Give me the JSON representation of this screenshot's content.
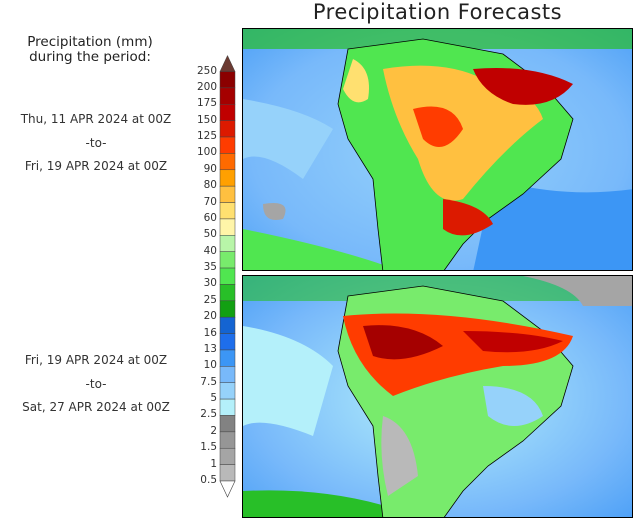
{
  "title": "Precipitation Forecasts",
  "legend": {
    "title_line1": "Precipitation (mm)",
    "title_line2": "during the period:",
    "labels": [
      "250",
      "200",
      "175",
      "150",
      "125",
      "100",
      "90",
      "80",
      "70",
      "60",
      "50",
      "40",
      "35",
      "30",
      "25",
      "20",
      "16",
      "13",
      "10",
      "7.5",
      "5",
      "2.5",
      "2",
      "1.5",
      "1",
      "0.5"
    ],
    "colors": [
      "#8b0000",
      "#a50000",
      "#c00000",
      "#dc1a00",
      "#ff3c00",
      "#ff6a00",
      "#ffa000",
      "#ffc040",
      "#ffe070",
      "#fff5a8",
      "#b8f5a8",
      "#78eb6c",
      "#50e650",
      "#28bf28",
      "#12a012",
      "#1464d2",
      "#1e6eeb",
      "#3c96f5",
      "#78b9fa",
      "#96d2fa",
      "#b4f0fa",
      "#828282",
      "#969696",
      "#a5a5a5",
      "#b9b9b9"
    ],
    "top_arrow_color": "#6b3a32"
  },
  "periods": [
    {
      "start": "Thu, 11 APR 2024 at 00Z",
      "sep": "-to-",
      "end": "Fri, 19 APR 2024 at 00Z"
    },
    {
      "start": "Fri, 19 APR 2024 at 00Z",
      "sep": "-to-",
      "end": "Sat, 27 APR 2024 at 00Z"
    }
  ]
}
